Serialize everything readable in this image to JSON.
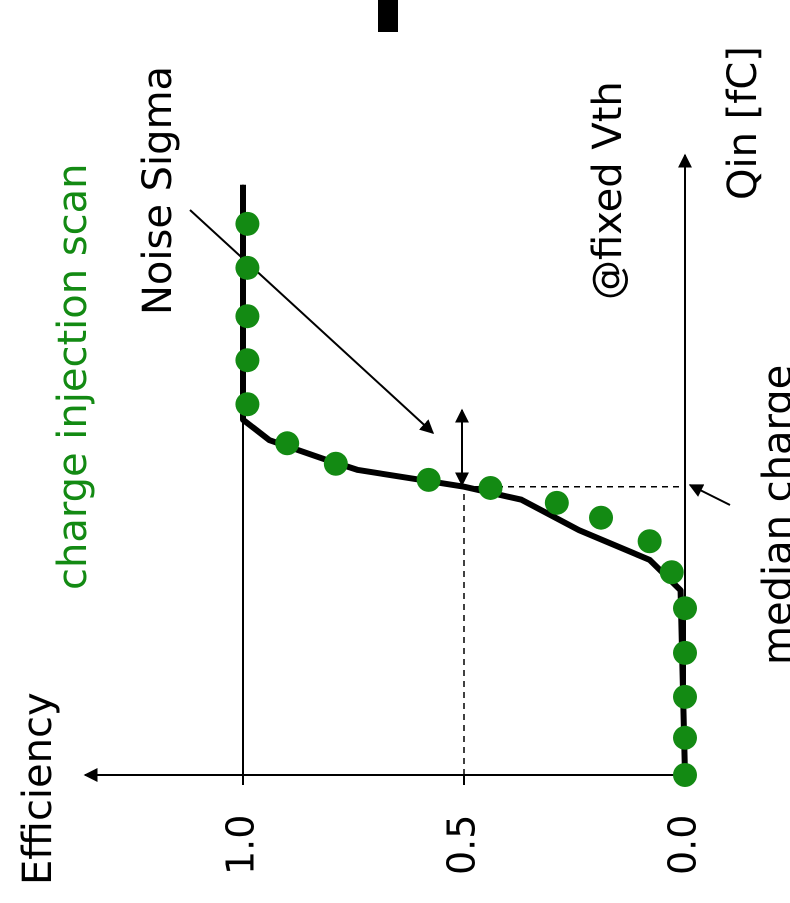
{
  "chart_data": {
    "type": "scatter",
    "title": "charge injection scan",
    "x_label": "Qin [fC]",
    "y_label": "Efficiency",
    "annotations": [
      "Noise Sigma",
      "@fixed Vth",
      "median charge"
    ],
    "xlim": [
      0,
      10
    ],
    "ylim": [
      0,
      1
    ],
    "yticks": [
      {
        "value": 0,
        "label": "0.0"
      },
      0.5,
      {
        "value": 1,
        "label": "1.0"
      }
    ],
    "median": {
      "x": 4.65,
      "y": 0.5
    },
    "curve": {
      "color": "#000000",
      "x": [
        0,
        2.98,
        3.47,
        3.95,
        4.44,
        4.65,
        4.92,
        5.08,
        5.4,
        5.73,
        9.52
      ],
      "values": [
        0,
        0.01,
        0.08,
        0.24,
        0.37,
        0.5,
        0.74,
        0.81,
        0.94,
        1.0,
        1.0
      ]
    },
    "series": [
      {
        "color": "#138a13",
        "x": [
          0,
          0.6,
          1.26,
          1.97,
          2.69,
          3.27,
          3.77,
          4.15,
          4.39,
          4.63,
          4.76,
          5.02,
          5.35,
          5.98,
          6.69,
          7.4,
          8.18,
          8.89
        ],
        "values": [
          0,
          0,
          0,
          0,
          0,
          0.03,
          0.08,
          0.19,
          0.29,
          0.44,
          0.58,
          0.79,
          0.9,
          0.99,
          0.99,
          0.99,
          0.99,
          0.99
        ]
      }
    ]
  }
}
